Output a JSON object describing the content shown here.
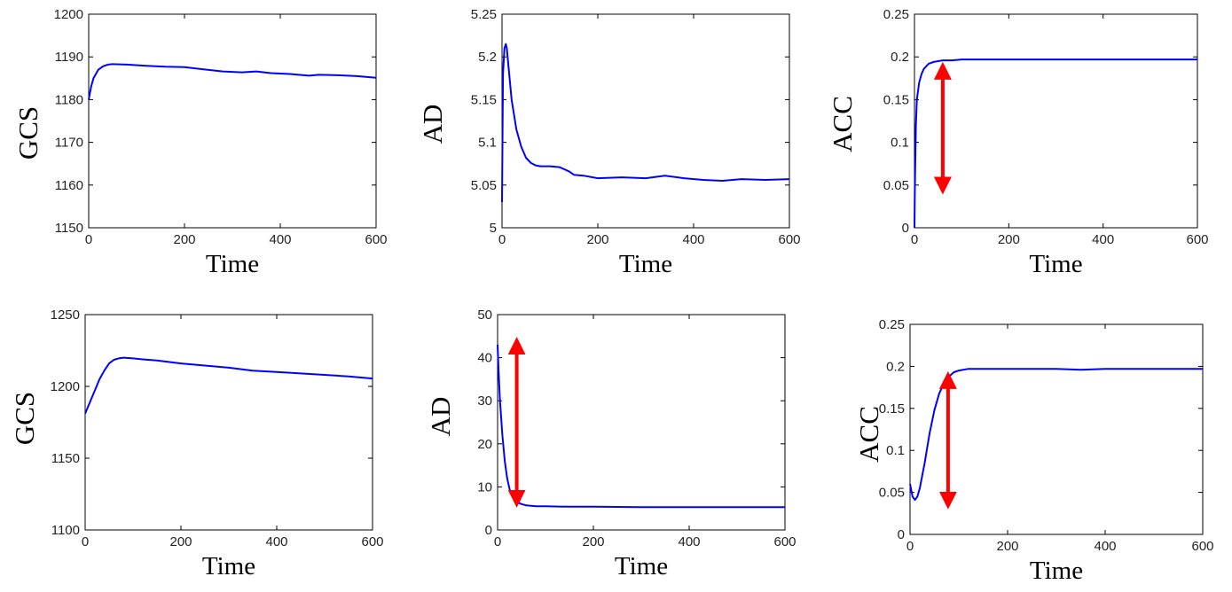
{
  "figure": {
    "line_color": "#0000ff",
    "arrow_color": "#ff0000"
  },
  "chart_data": [
    {
      "id": "gcs-top",
      "type": "line",
      "title": "",
      "xlabel": "Time",
      "ylabel": "GCS",
      "xlim": [
        0,
        600
      ],
      "ylim": [
        1150,
        1200
      ],
      "xticks": [
        0,
        200,
        400,
        600
      ],
      "yticks": [
        1150,
        1160,
        1170,
        1180,
        1190,
        1200
      ],
      "series": [
        {
          "name": "GCS",
          "x": [
            0,
            5,
            10,
            20,
            30,
            40,
            50,
            80,
            120,
            160,
            200,
            240,
            280,
            320,
            350,
            380,
            420,
            460,
            480,
            520,
            560,
            600
          ],
          "y": [
            1180,
            1183,
            1185,
            1187,
            1187.8,
            1188.2,
            1188.3,
            1188.2,
            1187.9,
            1187.7,
            1187.6,
            1187.1,
            1186.6,
            1186.4,
            1186.6,
            1186.2,
            1186,
            1185.6,
            1185.8,
            1185.7,
            1185.5,
            1185.1
          ]
        }
      ],
      "arrow": null
    },
    {
      "id": "ad-top",
      "type": "line",
      "title": "",
      "xlabel": "Time",
      "ylabel": "AD",
      "xlim": [
        0,
        600
      ],
      "ylim": [
        5,
        5.25
      ],
      "xticks": [
        0,
        200,
        400,
        600
      ],
      "yticks": [
        5,
        5.05,
        5.1,
        5.15,
        5.2,
        5.25
      ],
      "series": [
        {
          "name": "AD",
          "x": [
            0,
            2,
            5,
            8,
            10,
            15,
            20,
            30,
            40,
            50,
            60,
            70,
            80,
            100,
            120,
            140,
            150,
            170,
            200,
            250,
            300,
            340,
            380,
            420,
            460,
            500,
            550,
            600
          ],
          "y": [
            5.03,
            5.18,
            5.21,
            5.215,
            5.21,
            5.18,
            5.15,
            5.115,
            5.095,
            5.082,
            5.076,
            5.073,
            5.072,
            5.072,
            5.071,
            5.066,
            5.062,
            5.061,
            5.058,
            5.059,
            5.058,
            5.061,
            5.058,
            5.056,
            5.055,
            5.057,
            5.056,
            5.057
          ]
        }
      ],
      "arrow": null
    },
    {
      "id": "acc-top",
      "type": "line",
      "title": "",
      "xlabel": "Time",
      "ylabel": "ACC",
      "xlim": [
        0,
        600
      ],
      "ylim": [
        0,
        0.25
      ],
      "xticks": [
        0,
        200,
        400,
        600
      ],
      "yticks": [
        0,
        0.05,
        0.1,
        0.15,
        0.2,
        0.25
      ],
      "series": [
        {
          "name": "ACC",
          "x": [
            0,
            1,
            3,
            5,
            10,
            15,
            20,
            30,
            40,
            50,
            60,
            80,
            100,
            150,
            200,
            300,
            400,
            500,
            600
          ],
          "y": [
            0,
            0.05,
            0.12,
            0.15,
            0.17,
            0.18,
            0.186,
            0.192,
            0.194,
            0.195,
            0.196,
            0.196,
            0.197,
            0.197,
            0.197,
            0.197,
            0.197,
            0.197,
            0.197
          ]
        }
      ],
      "arrow": {
        "x": 60,
        "y_start": 0.043,
        "y_end": 0.19
      }
    },
    {
      "id": "gcs-bottom",
      "type": "line",
      "title": "",
      "xlabel": "Time",
      "ylabel": "GCS",
      "xlim": [
        0,
        600
      ],
      "ylim": [
        1100,
        1250
      ],
      "xticks": [
        0,
        200,
        400,
        600
      ],
      "yticks": [
        1100,
        1150,
        1200,
        1250
      ],
      "series": [
        {
          "name": "GCS",
          "x": [
            0,
            10,
            20,
            30,
            40,
            50,
            60,
            70,
            80,
            100,
            120,
            150,
            200,
            250,
            300,
            350,
            400,
            450,
            500,
            550,
            600
          ],
          "y": [
            1181,
            1189,
            1197,
            1205,
            1211,
            1216,
            1218.5,
            1219.5,
            1220,
            1219.5,
            1218.8,
            1218,
            1216,
            1214.5,
            1213,
            1211,
            1210,
            1209,
            1208,
            1207,
            1205.5
          ]
        }
      ],
      "arrow": null
    },
    {
      "id": "ad-bottom",
      "type": "line",
      "title": "",
      "xlabel": "Time",
      "ylabel": "AD",
      "xlim": [
        0,
        600
      ],
      "ylim": [
        0,
        50
      ],
      "xticks": [
        0,
        200,
        400,
        600
      ],
      "yticks": [
        0,
        10,
        20,
        30,
        40,
        50
      ],
      "series": [
        {
          "name": "AD",
          "x": [
            0,
            2,
            5,
            10,
            15,
            20,
            25,
            30,
            35,
            40,
            50,
            60,
            70,
            80,
            100,
            150,
            200,
            300,
            400,
            500,
            600
          ],
          "y": [
            43,
            37,
            30,
            22,
            16,
            12,
            9.5,
            8,
            7,
            6.5,
            6,
            5.7,
            5.6,
            5.5,
            5.5,
            5.4,
            5.4,
            5.3,
            5.3,
            5.3,
            5.3
          ]
        }
      ],
      "arrow": {
        "x": 40,
        "y_start": 6,
        "y_end": 44
      }
    },
    {
      "id": "acc-bottom",
      "type": "line",
      "title": "",
      "xlabel": "Time",
      "ylabel": "ACC",
      "xlim": [
        0,
        600
      ],
      "ylim": [
        0,
        0.25
      ],
      "xticks": [
        0,
        200,
        400,
        600
      ],
      "yticks": [
        0,
        0.05,
        0.1,
        0.15,
        0.2,
        0.25
      ],
      "series": [
        {
          "name": "ACC",
          "x": [
            0,
            5,
            10,
            15,
            20,
            30,
            40,
            50,
            60,
            70,
            80,
            90,
            100,
            120,
            150,
            200,
            250,
            300,
            350,
            400,
            450,
            500,
            550,
            600
          ],
          "y": [
            0.06,
            0.045,
            0.041,
            0.045,
            0.055,
            0.085,
            0.12,
            0.148,
            0.168,
            0.18,
            0.188,
            0.193,
            0.195,
            0.197,
            0.197,
            0.197,
            0.197,
            0.197,
            0.196,
            0.197,
            0.197,
            0.197,
            0.197,
            0.197
          ]
        }
      ],
      "arrow": {
        "x": 78,
        "y_start": 0.034,
        "y_end": 0.19
      }
    }
  ]
}
